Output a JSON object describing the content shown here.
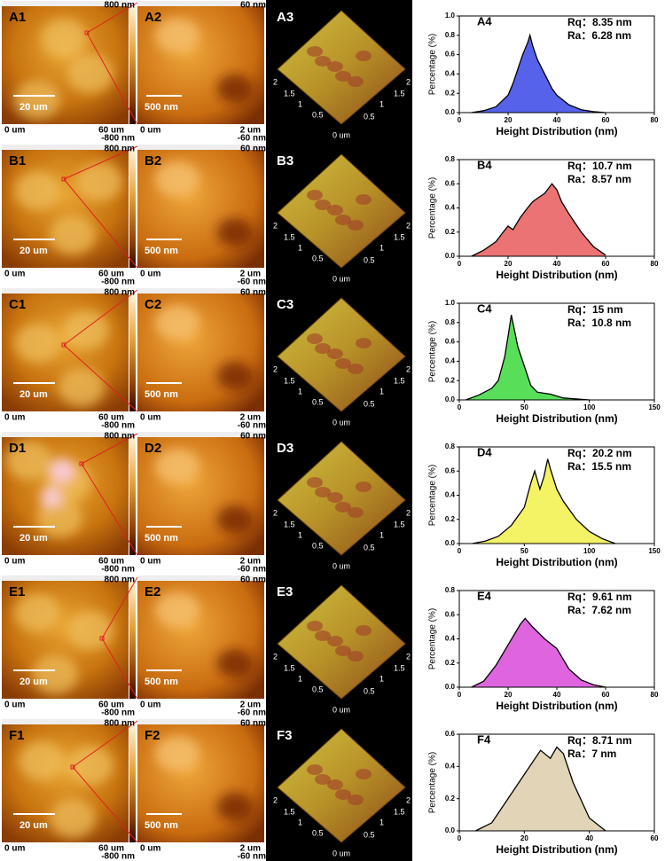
{
  "rows": [
    {
      "labels": [
        "A1",
        "A2",
        "A3"
      ]
    },
    {
      "labels": [
        "B1",
        "B2",
        "B3"
      ]
    },
    {
      "labels": [
        "C1",
        "C2",
        "C3"
      ]
    },
    {
      "labels": [
        "D1",
        "D2",
        "D3"
      ]
    },
    {
      "labels": [
        "E1",
        "E2",
        "E3"
      ]
    },
    {
      "labels": [
        "F1",
        "F2",
        "F3"
      ]
    }
  ],
  "afm": {
    "img1_min": "0 um",
    "img1_max": "60 um",
    "img1_ztop": "800 nm",
    "img1_zbot": "-800 nm",
    "img1_scale": "20  um",
    "img2_min": "0 um",
    "img2_max": "2 um",
    "img2_ztop": "60 nm",
    "img2_zbot": "-60 nm",
    "img2_scale": "500 nm",
    "axis3d": [
      "2",
      "1.5",
      "1",
      "0.5",
      "0 um"
    ]
  },
  "chart_data": [
    {
      "type": "area",
      "label": "A4",
      "annotations": [
        "Rq：8.35 nm",
        "Ra：6.28 nm"
      ],
      "color": "#3a46e6",
      "xlabel": "Height Distribution (nm)",
      "ylabel": "Percentage (%)",
      "x": [
        5,
        10,
        15,
        20,
        22,
        24,
        26,
        28,
        29,
        30,
        32,
        34,
        36,
        38,
        40,
        45,
        50,
        55,
        60
      ],
      "values": [
        0,
        0.02,
        0.06,
        0.18,
        0.3,
        0.45,
        0.6,
        0.72,
        0.8,
        0.7,
        0.55,
        0.45,
        0.35,
        0.25,
        0.18,
        0.08,
        0.03,
        0.01,
        0
      ],
      "xlim": [
        0,
        80
      ],
      "xticks": [
        0,
        20,
        40,
        60,
        80
      ],
      "ylim": [
        0,
        1
      ],
      "yticks": [
        {
          "value": 0,
          "label": "0.0"
        },
        0.2,
        0.4,
        0.6,
        0.8,
        {
          "value": 1,
          "label": "1.0"
        }
      ]
    },
    {
      "type": "area",
      "label": "B4",
      "annotations": [
        "Rq：10.7 nm",
        "Ra：8.57 nm"
      ],
      "color": "#e85a5a",
      "xlabel": "Height Distribution (nm)",
      "ylabel": "Percentage (%)",
      "x": [
        5,
        10,
        15,
        18,
        20,
        22,
        25,
        28,
        30,
        32,
        35,
        38,
        40,
        42,
        45,
        50,
        55,
        60
      ],
      "values": [
        0,
        0.05,
        0.12,
        0.2,
        0.25,
        0.22,
        0.32,
        0.4,
        0.45,
        0.48,
        0.52,
        0.6,
        0.55,
        0.45,
        0.35,
        0.2,
        0.08,
        0.01
      ],
      "xlim": [
        0,
        80
      ],
      "xticks": [
        0,
        20,
        40,
        60,
        80
      ],
      "ylim": [
        0,
        0.8
      ],
      "yticks": [
        {
          "value": 0,
          "label": "0.0"
        },
        0.2,
        0.4,
        0.6,
        0.8
      ]
    },
    {
      "type": "area",
      "label": "C4",
      "annotations": [
        "Rq：15 nm",
        "Ra：10.8 nm"
      ],
      "color": "#3cd83c",
      "xlabel": "Height Distribution (nm)",
      "ylabel": "Percentage (%)",
      "x": [
        5,
        15,
        25,
        30,
        35,
        38,
        40,
        42,
        45,
        50,
        55,
        60,
        70,
        80,
        90,
        100
      ],
      "values": [
        0,
        0.05,
        0.12,
        0.2,
        0.45,
        0.7,
        0.88,
        0.75,
        0.55,
        0.35,
        0.15,
        0.08,
        0.06,
        0.02,
        0.01,
        0
      ],
      "xlim": [
        0,
        150
      ],
      "xticks": [
        0,
        50,
        100,
        150
      ],
      "ylim": [
        0,
        1
      ],
      "yticks": [
        {
          "value": 0,
          "label": "0.0"
        },
        0.2,
        0.4,
        0.6,
        0.8,
        {
          "value": 1,
          "label": "1.0"
        }
      ]
    },
    {
      "type": "area",
      "label": "D4",
      "annotations": [
        "Rq：20.2 nm",
        "Ra：15.5 nm"
      ],
      "color": "#f2f04a",
      "xlabel": "Height Distribution (nm)",
      "ylabel": "Percentage (%)",
      "x": [
        10,
        20,
        30,
        40,
        50,
        55,
        58,
        62,
        65,
        68,
        70,
        75,
        80,
        90,
        100,
        110,
        120
      ],
      "values": [
        0,
        0.02,
        0.06,
        0.15,
        0.3,
        0.5,
        0.6,
        0.45,
        0.55,
        0.7,
        0.62,
        0.45,
        0.35,
        0.2,
        0.1,
        0.04,
        0
      ],
      "xlim": [
        0,
        150
      ],
      "xticks": [
        0,
        50,
        100,
        150
      ],
      "ylim": [
        0,
        0.8
      ],
      "yticks": [
        {
          "value": 0,
          "label": "0.0"
        },
        0.2,
        0.4,
        0.6,
        0.8
      ]
    },
    {
      "type": "area",
      "label": "E4",
      "annotations": [
        "Rq：9.61 nm",
        "Ra：7.62 nm"
      ],
      "color": "#d84ad8",
      "xlabel": "Height Distribution (nm)",
      "ylabel": "Percentage (%)",
      "x": [
        5,
        10,
        15,
        20,
        25,
        27,
        30,
        35,
        40,
        45,
        50,
        55,
        60
      ],
      "values": [
        0,
        0.05,
        0.18,
        0.35,
        0.52,
        0.57,
        0.5,
        0.4,
        0.32,
        0.15,
        0.06,
        0.02,
        0
      ],
      "xlim": [
        0,
        80
      ],
      "xticks": [
        0,
        20,
        40,
        60,
        80
      ],
      "ylim": [
        0,
        0.8
      ],
      "yticks": [
        {
          "value": 0,
          "label": "0.0"
        },
        0.2,
        0.4,
        0.6,
        0.8
      ]
    },
    {
      "type": "area",
      "label": "F4",
      "annotations": [
        "Rq：8.71 nm",
        "Ra：7 nm"
      ],
      "color": "#dccdaa",
      "xlabel": "Height Distribution (nm)",
      "ylabel": "Percentage (%)",
      "x": [
        5,
        10,
        15,
        20,
        25,
        28,
        30,
        32,
        35,
        40,
        45
      ],
      "values": [
        0,
        0.05,
        0.2,
        0.35,
        0.5,
        0.45,
        0.52,
        0.48,
        0.3,
        0.08,
        0
      ],
      "xlim": [
        0,
        60
      ],
      "xticks": [
        0,
        20,
        40,
        60
      ],
      "ylim": [
        0,
        0.6
      ],
      "yticks": [
        {
          "value": 0,
          "label": "0.0"
        },
        0.2,
        0.4,
        0.6
      ]
    }
  ]
}
